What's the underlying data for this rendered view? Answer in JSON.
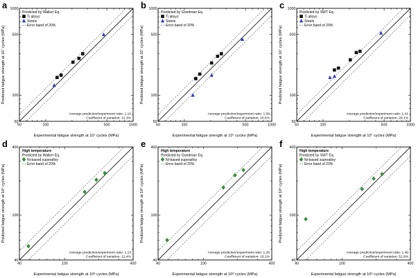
{
  "figure": {
    "description_colors": {
      "ti_alloys": "#111111",
      "steels": "#2438c8",
      "ni_superalloy": "#2f9e2f",
      "error_band": "#777777",
      "identity_line": "#000000"
    }
  },
  "chart_data": [
    {
      "panel": "a",
      "type": "scatter",
      "log_scale": true,
      "xlim": [
        50,
        1000
      ],
      "ylim": [
        50,
        1000
      ],
      "xticks": [
        50,
        100,
        500,
        1000
      ],
      "yticks": [
        50,
        100,
        500,
        1000
      ],
      "xlabel": "Experimental fatigue strength at 10⁷ cycles (MPa)",
      "ylabel": "Predicted fatigue strength at 10⁷ cycles (MPa)",
      "legend_titles": [
        {
          "text": "Predicted by Walker Eq.",
          "bold": false
        }
      ],
      "series": [
        {
          "name": "Ti alloys",
          "marker": "square",
          "color": "#111111",
          "points": [
            [
              135,
              160
            ],
            [
              150,
              170
            ],
            [
              205,
              240
            ],
            [
              240,
              265
            ],
            [
              265,
              300
            ]
          ]
        },
        {
          "name": "Steels",
          "marker": "triangle",
          "color": "#2438c8",
          "points": [
            [
              125,
              130
            ],
            [
              460,
              500
            ]
          ]
        }
      ],
      "error_band_label": "Error band of 20%",
      "error_band_pct": 20,
      "annotation": [
        "Average prediction/experiment ratio: 1.10",
        "Coefficient of variation: 12.3%"
      ]
    },
    {
      "panel": "b",
      "type": "scatter",
      "log_scale": true,
      "xlim": [
        50,
        1000
      ],
      "ylim": [
        50,
        1000
      ],
      "xticks": [
        50,
        100,
        500,
        1000
      ],
      "yticks": [
        50,
        100,
        500,
        1000
      ],
      "xlabel": "Experimental fatigue strength at 10⁷ cycles (MPa)",
      "ylabel": "Predicted fatigue strength at 10⁷ cycles (MPa)",
      "legend_titles": [
        {
          "text": "Predicted by Goodman Eq.",
          "bold": false
        }
      ],
      "series": [
        {
          "name": "Ti alloys",
          "marker": "square",
          "color": "#111111",
          "points": [
            [
              135,
              155
            ],
            [
              150,
              175
            ],
            [
              205,
              235
            ],
            [
              240,
              280
            ],
            [
              265,
              300
            ]
          ]
        },
        {
          "name": "Steels",
          "marker": "triangle",
          "color": "#2438c8",
          "points": [
            [
              125,
              100
            ],
            [
              205,
              170
            ],
            [
              460,
              440
            ]
          ]
        }
      ],
      "error_band_label": "Error band of 20%",
      "error_band_pct": 20,
      "annotation": [
        "Average prediction/experiment ratio: 1.09",
        "Coefficient of variation: 20.5%"
      ]
    },
    {
      "panel": "c",
      "type": "scatter",
      "log_scale": true,
      "xlim": [
        50,
        1000
      ],
      "ylim": [
        50,
        1000
      ],
      "xticks": [
        50,
        100,
        500,
        1000
      ],
      "yticks": [
        50,
        100,
        500,
        1000
      ],
      "xlabel": "Experimental fatigue strength at 10⁷ cycles (MPa)",
      "ylabel": "Predicted fatigue strength at 10⁷ cycles (MPa)",
      "legend_titles": [
        {
          "text": "Predicted by SWT Eq.",
          "bold": false
        }
      ],
      "series": [
        {
          "name": "Ti alloys",
          "marker": "square",
          "color": "#111111",
          "points": [
            [
              135,
              195
            ],
            [
              150,
              205
            ],
            [
              205,
              255
            ],
            [
              240,
              310
            ],
            [
              265,
              320
            ]
          ]
        },
        {
          "name": "Steels",
          "marker": "triangle",
          "color": "#2438c8",
          "points": [
            [
              120,
              160
            ],
            [
              135,
              165
            ],
            [
              460,
              520
            ]
          ]
        }
      ],
      "error_band_label": "Error band of 20%",
      "error_band_pct": 20,
      "annotation": [
        "Average prediction/experiment ratio: 1.41",
        "Coefficient of variation: 29.1%"
      ]
    },
    {
      "panel": "d",
      "type": "scatter",
      "log_scale": true,
      "xlim": [
        40,
        400
      ],
      "ylim": [
        40,
        400
      ],
      "xticks": [
        40,
        100,
        400
      ],
      "yticks": [
        40,
        100,
        400
      ],
      "xlabel": "Experimental fatigue strength at 10⁸ cycles (MPa)",
      "ylabel": "Predicted fatigue strength at 10⁸ cycles (MPa)",
      "legend_titles": [
        {
          "text": "High temperature",
          "bold": true
        },
        {
          "text": "Predicted by Walker Eq.",
          "bold": false
        }
      ],
      "series": [
        {
          "name": "Ni-based superalloy",
          "marker": "diamond",
          "color": "#2f9e2f",
          "points": [
            [
              48,
              53
            ],
            [
              150,
              160
            ],
            [
              190,
              205
            ],
            [
              225,
              235
            ]
          ]
        }
      ],
      "error_band_label": "Error band of 20%",
      "error_band_pct": 20,
      "annotation": [
        "Average prediction/experiment ratio: 1.13",
        "Coefficient of variation: 21.4%"
      ]
    },
    {
      "panel": "e",
      "type": "scatter",
      "log_scale": true,
      "xlim": [
        40,
        400
      ],
      "ylim": [
        40,
        400
      ],
      "xticks": [
        40,
        100,
        400
      ],
      "yticks": [
        40,
        100,
        400
      ],
      "xlabel": "Experimental fatigue strength at 10⁸ cycles (MPa)",
      "ylabel": "Predicted fatigue strength at 10⁸ cycles (MPa)",
      "legend_titles": [
        {
          "text": "High temperature",
          "bold": true
        },
        {
          "text": "Predicted by Goodman Eq.",
          "bold": false
        }
      ],
      "series": [
        {
          "name": "Ni-based superalloy",
          "marker": "diamond",
          "color": "#2f9e2f",
          "points": [
            [
              48,
              60
            ],
            [
              150,
              175
            ],
            [
              190,
              225
            ],
            [
              225,
              250
            ]
          ]
        }
      ],
      "error_band_label": "Error band of 20%",
      "error_band_pct": 20,
      "annotation": [
        "Average prediction/experiment ratio: 1.26",
        "Coefficient of variation: 16.1%"
      ]
    },
    {
      "panel": "f",
      "type": "scatter",
      "log_scale": true,
      "xlim": [
        40,
        400
      ],
      "ylim": [
        40,
        400
      ],
      "xticks": [
        40,
        100,
        400
      ],
      "yticks": [
        40,
        100,
        400
      ],
      "xlabel": "Experimental fatigue strength at 10⁸ cycles (MPa)",
      "ylabel": "Predicted fatigue strength at 10⁸ cycles (MPa)",
      "legend_titles": [
        {
          "text": "High temperature",
          "bold": true
        },
        {
          "text": "Predicted by SWT Eq.",
          "bold": false
        }
      ],
      "series": [
        {
          "name": "Ni-based superalloy",
          "marker": "diamond",
          "color": "#2f9e2f",
          "points": [
            [
              48,
              92
            ],
            [
              150,
              170
            ],
            [
              190,
              210
            ],
            [
              225,
              230
            ]
          ]
        }
      ],
      "error_band_label": "Error band of 20%",
      "error_band_pct": 20,
      "annotation": [
        "Average prediction/experiment ratio: 1.49",
        "Coefficient of variation: 51.9%"
      ]
    }
  ]
}
